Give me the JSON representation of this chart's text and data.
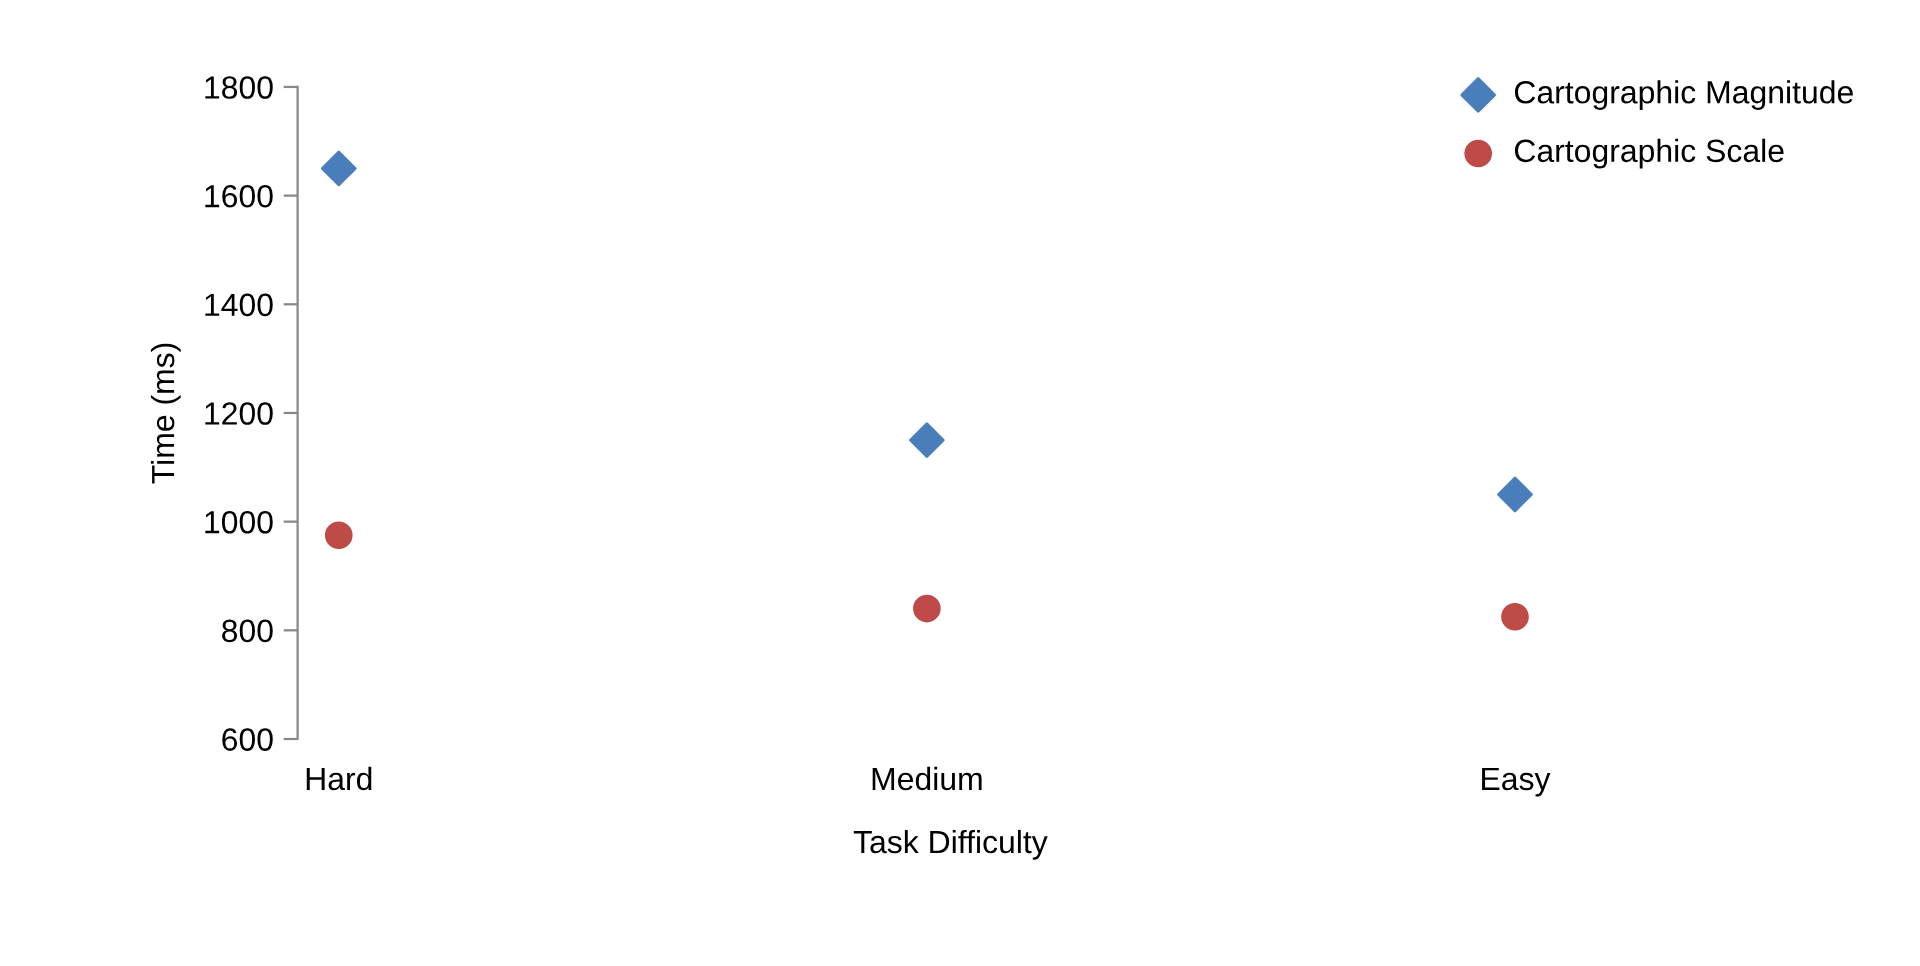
{
  "chart_data": {
    "type": "scatter",
    "xlabel": "Task Difficulty",
    "ylabel": "Time (ms)",
    "categories": [
      "Hard",
      "Medium",
      "Easy"
    ],
    "series": [
      {
        "name": "Cartographic Magnitude",
        "color": "#4a7ebb",
        "marker": "diamond",
        "values": [
          1650,
          1150,
          1050
        ]
      },
      {
        "name": "Cartographic Scale",
        "color": "#be4b48",
        "marker": "circle",
        "values": [
          975,
          840,
          825
        ]
      }
    ],
    "ylim": [
      600,
      1800
    ],
    "yticks": [
      600,
      800,
      1000,
      1200,
      1400,
      1600,
      1800
    ],
    "grid": false,
    "legend": "top right"
  }
}
